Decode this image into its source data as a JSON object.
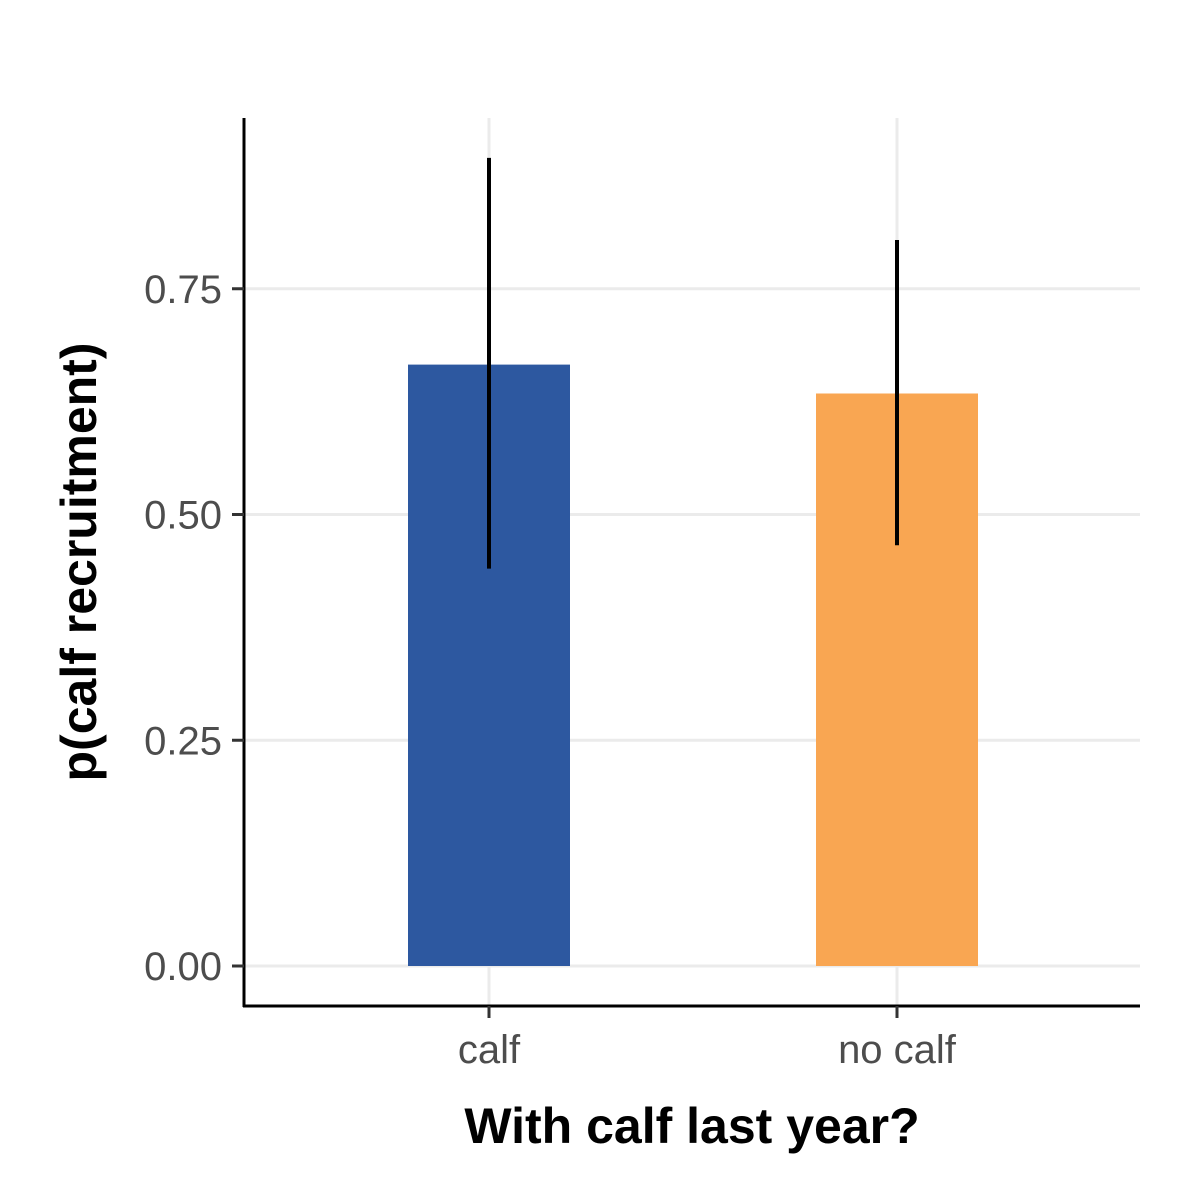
{
  "chart_data": {
    "type": "bar",
    "categories": [
      "calf",
      "no calf"
    ],
    "values": [
      0.666,
      0.634
    ],
    "error_low": [
      0.44,
      0.466
    ],
    "error_high": [
      0.895,
      0.804
    ],
    "colors": [
      "#2d58a0",
      "#f9a652"
    ],
    "xlabel": "With calf last year?",
    "ylabel": "p(calf recruitment)",
    "ylim": [
      -0.042,
      0.942
    ],
    "yticks": [
      0.0,
      0.25,
      0.5,
      0.75
    ],
    "ytick_labels": [
      "0.00",
      "0.25",
      "0.50",
      "0.75"
    ],
    "grid": true,
    "legend": "none"
  }
}
